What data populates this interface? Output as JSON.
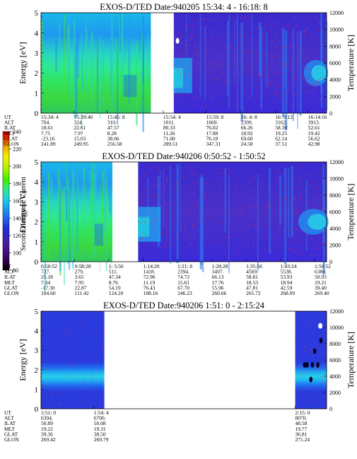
{
  "colorbar": {
    "label": "Second Harmonic Current",
    "ticks": [
      "80",
      "100",
      "120",
      "140",
      "160",
      "180",
      "200",
      "220",
      "240"
    ],
    "colors": [
      "#000000",
      "#3a0060",
      "#4a1a9a",
      "#1f2fd6",
      "#1f78f0",
      "#19c8f0",
      "#2fe890",
      "#3cf000",
      "#b8f000",
      "#f0f000",
      "#f0a000",
      "#f03000",
      "#e00000"
    ]
  },
  "chart_data": [
    {
      "type": "heatmap",
      "title": "EXOS-D/TED   Date:940205  15:34: 4 - 16:18: 8",
      "ylabel": "Energy [eV]",
      "y2label": "Temperature [K]",
      "ylim": [
        0,
        5
      ],
      "y2lim": [
        0,
        12000
      ],
      "yticks": [
        "0",
        "1",
        "2",
        "3",
        "4",
        "5"
      ],
      "y2ticks": [
        "0",
        "2000",
        "4000",
        "6000",
        "8000",
        "10000",
        "12000"
      ],
      "row_labels": [
        "UT",
        "ALT",
        "ILAT",
        "MLT",
        "GLAT",
        "GLON"
      ],
      "columns": [
        {
          "frac": 0.0,
          "values": [
            "15:34: 4",
            "704.",
            "18.61",
            "7.75",
            "-23.16",
            "241.89"
          ]
        },
        {
          "frac": 0.115,
          "values": [
            "15:39:40",
            "324.",
            "22.61",
            "7.97",
            "15.03",
            "249.95"
          ]
        },
        {
          "frac": 0.232,
          "values": [
            "15:45: 8",
            "310.",
            "47.57",
            "8.28",
            "38.06",
            "256.58"
          ]
        },
        {
          "frac": 0.428,
          "values": [
            "15:54: 4",
            "1011.",
            "80.33",
            "11.26",
            "71.00",
            "289.51"
          ]
        },
        {
          "frac": 0.578,
          "values": [
            "15:59: 8",
            "1669.",
            "76.02",
            "17.88",
            "76.18",
            "347.31"
          ]
        },
        {
          "frac": 0.7,
          "values": [
            "16: 4: 8",
            "2399.",
            "66.26",
            "18.92",
            "69.60",
            "24.58"
          ]
        },
        {
          "frac": 0.82,
          "values": [
            "16: 9:12",
            "3162.",
            "58.30",
            "19.25",
            "62.14",
            "37.51"
          ]
        },
        {
          "frac": 0.935,
          "values": [
            "16:14:16",
            "3913.",
            "52.61",
            "19.42",
            "56.62",
            "42.98"
          ]
        }
      ],
      "segments": [
        {
          "from": 0.0,
          "to": 0.385,
          "scene": "green"
        },
        {
          "from": 0.385,
          "to": 0.465,
          "scene": "gap"
        },
        {
          "from": 0.465,
          "to": 1.0,
          "scene": "purple"
        }
      ]
    },
    {
      "type": "heatmap",
      "title": "EXOS-D/TED   Date:940206   0:50:52 - 1:50:52",
      "ylabel": "Energy [eV]",
      "y2label": "Temperature [K]",
      "ylim": [
        0,
        5
      ],
      "y2lim": [
        0,
        12000
      ],
      "yticks": [
        "0",
        "1",
        "2",
        "3",
        "4",
        "5"
      ],
      "y2ticks": [
        "0",
        "2000",
        "4000",
        "6000",
        "8000",
        "10000",
        "12000"
      ],
      "row_labels": [
        "UT",
        "ALT",
        "ILAT",
        "MLT",
        "GLAT",
        "GLON"
      ],
      "columns": [
        {
          "frac": 0.0,
          "values": [
            "0:50:52",
            "727.",
            "25.18",
            "7.34",
            "-17.30",
            "104.60"
          ]
        },
        {
          "frac": 0.118,
          "values": [
            "0:58:28",
            "279.",
            "3.65",
            "7.95",
            "22.87",
            "111.42"
          ]
        },
        {
          "frac": 0.237,
          "values": [
            "1: 5:56",
            "511.",
            "47.34",
            "8.76",
            "54.19",
            "124.20"
          ]
        },
        {
          "frac": 0.358,
          "values": [
            "1:14:20",
            "1418.",
            "72.96",
            "11.19",
            "76.43",
            "188.16"
          ]
        },
        {
          "frac": 0.478,
          "values": [
            "1:21: 8",
            "2394.",
            "74.72",
            "15.61",
            "67.70",
            "246.23"
          ]
        },
        {
          "frac": 0.598,
          "values": [
            "1:28:28",
            "3497.",
            "66.13",
            "17.76",
            "55.96",
            "260.66"
          ]
        },
        {
          "frac": 0.718,
          "values": [
            "1:35:56",
            "4569.",
            "58.81",
            "18.53",
            "47.81",
            "265.72"
          ]
        },
        {
          "frac": 0.838,
          "values": [
            "1:43:24",
            "5538.",
            "53.93",
            "18.94",
            "42.59",
            "268.09"
          ]
        },
        {
          "frac": 0.958,
          "values": [
            "1:50:52",
            "6380.",
            "50.93",
            "19.21",
            "39.40",
            "269.40"
          ]
        }
      ],
      "segments": [
        {
          "from": 0.0,
          "to": 0.25,
          "scene": "green"
        },
        {
          "from": 0.25,
          "to": 0.34,
          "scene": "gap"
        },
        {
          "from": 0.34,
          "to": 1.0,
          "scene": "purple"
        }
      ]
    },
    {
      "type": "heatmap",
      "title": "EXOS-D/TED   Date:940206   1:51: 0 - 2:15:24",
      "ylabel": "Energy [eV]",
      "y2label": "Temperature [K]",
      "ylim": [
        0,
        5
      ],
      "y2lim": [
        0,
        12000
      ],
      "yticks": [
        "0",
        "1",
        "2",
        "3",
        "4",
        "5"
      ],
      "y2ticks": [
        "0",
        "2000",
        "4000",
        "6000",
        "8000",
        "10000",
        "12000"
      ],
      "row_labels": [
        "UT",
        "ALT",
        "ILAT",
        "MLT",
        "GLAT",
        "GLON"
      ],
      "columns": [
        {
          "frac": 0.0,
          "values": [
            "1:51: 0",
            "6394.",
            "50.89",
            "19.22",
            "39.36",
            "269.42"
          ]
        },
        {
          "frac": 0.185,
          "values": [
            "1:54: 4",
            "6700.",
            "50.08",
            "19.31",
            "38.50",
            "269.79"
          ]
        },
        {
          "frac": 0.89,
          "values": [
            "2:15: 0",
            "8070.",
            "48.58",
            "19.77",
            "36.81",
            "271.24"
          ]
        }
      ],
      "segments": [
        {
          "from": 0.0,
          "to": 0.222,
          "scene": "band"
        },
        {
          "from": 0.222,
          "to": 0.89,
          "scene": "gap"
        },
        {
          "from": 0.89,
          "to": 1.0,
          "scene": "band-dots"
        }
      ]
    }
  ]
}
